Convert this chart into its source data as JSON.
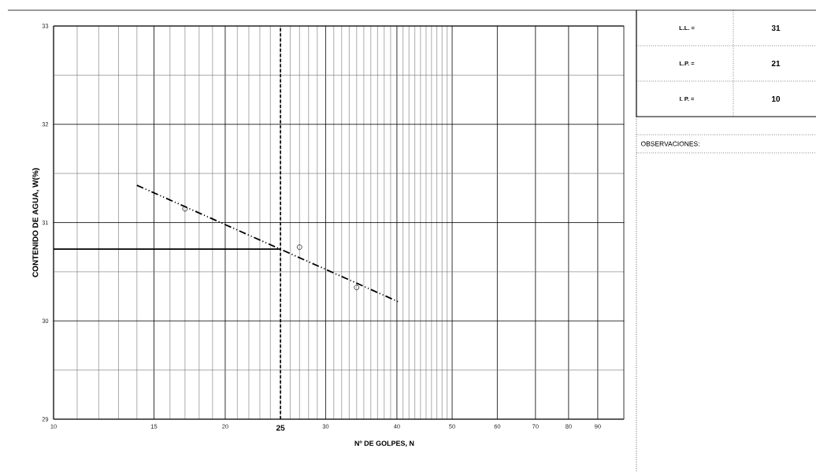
{
  "chart_data": {
    "type": "scatter",
    "xlabel": "Nº DE GOLPES, N",
    "ylabel": "CONTENIDO DE AGUA, W(%)",
    "log": "x",
    "xlim": [
      10,
      100
    ],
    "ylim": [
      29,
      33
    ],
    "xticks": [
      10,
      15,
      20,
      30,
      40,
      50,
      60,
      70,
      80,
      90
    ],
    "yticks": [
      29,
      30,
      31,
      32,
      33
    ],
    "grid": true,
    "series": [
      {
        "x": [
          17,
          27,
          34
        ],
        "values": [
          31.14,
          30.75,
          30.34
        ],
        "color": "#000000",
        "marker": "circle"
      },
      {
        "type": "line",
        "x": [
          14,
          40.4
        ],
        "values": [
          31.38,
          30.19
        ],
        "color": "#000000",
        "line_style": "dashed"
      },
      {
        "type": "line",
        "x": [
          10,
          25
        ],
        "values": [
          30.73,
          30.73
        ],
        "color": "#000000",
        "line_style": "solid"
      }
    ],
    "ref_lines": [
      {
        "axis": "x",
        "value": 25,
        "label": "25",
        "line_style": "dashed",
        "color": "#000000"
      }
    ],
    "annotations": [
      "L.L. =",
      "31",
      "L.P. =",
      "21",
      "I. P. =",
      "10",
      "OBSERVACIONES:"
    ]
  }
}
